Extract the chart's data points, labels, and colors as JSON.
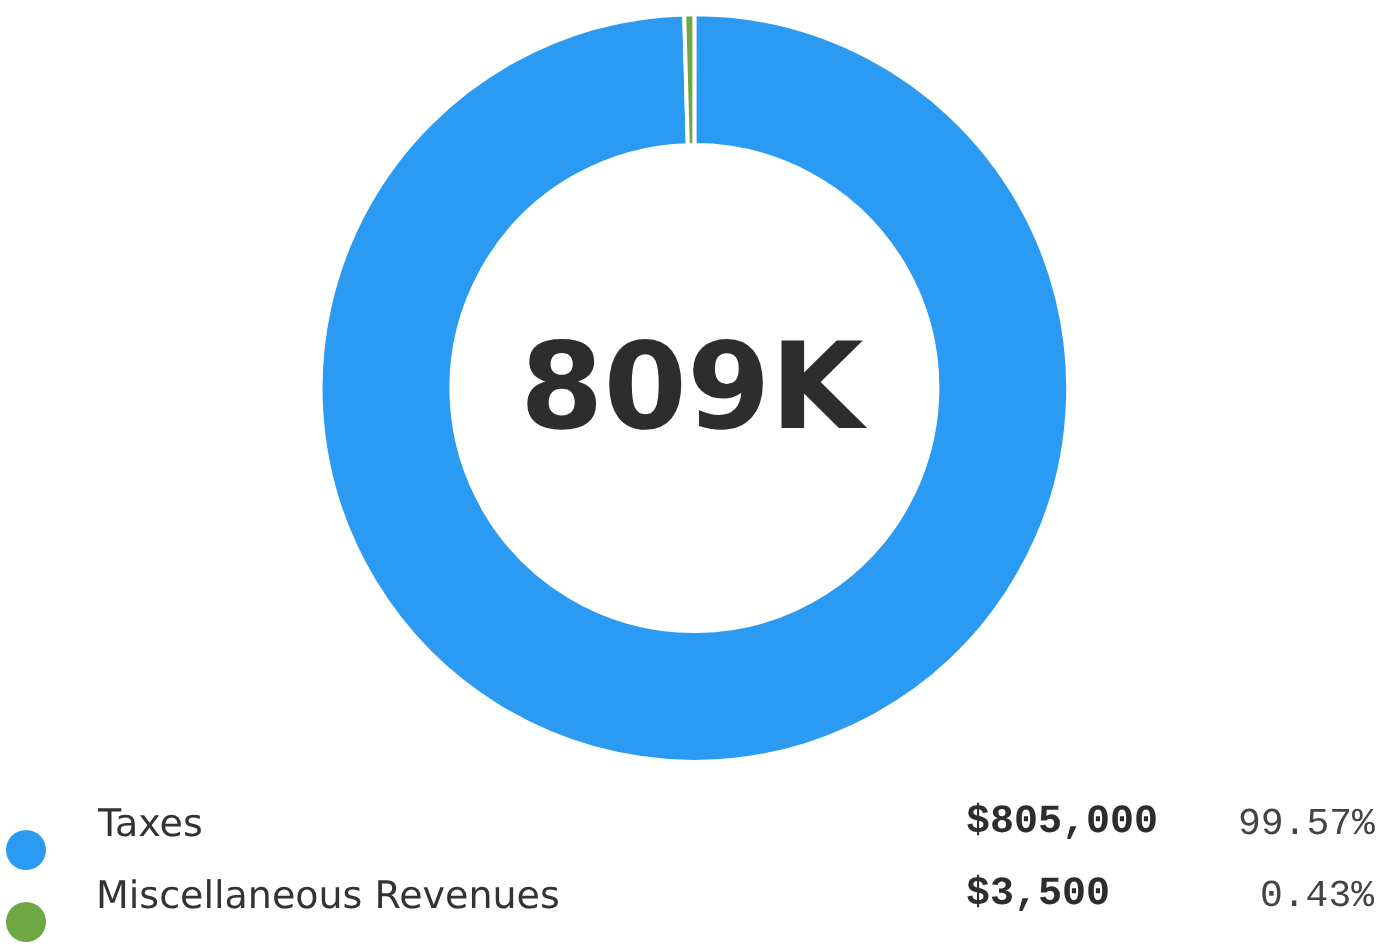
{
  "chart_data": {
    "type": "donut",
    "categories": [
      "Taxes",
      "Miscellaneous Revenues"
    ],
    "values": [
      805000,
      3500
    ],
    "colors": [
      "#2b9af3",
      "#6fa744"
    ],
    "value_labels": [
      "$805,000",
      "$3,500"
    ],
    "annotations": [
      "809K",
      "99.57%",
      "0.43%"
    ],
    "legend": "bottom"
  }
}
